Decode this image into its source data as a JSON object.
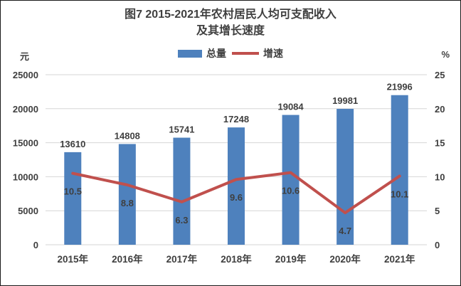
{
  "chart": {
    "title_line1": "图7  2015-2021年农村居民人均可支配收入",
    "title_line2": "及其增长速度",
    "left_axis_unit": "元",
    "right_axis_unit": "%",
    "legend": [
      {
        "label": "总量",
        "type": "bar",
        "color": "#4e81bd"
      },
      {
        "label": "增速",
        "type": "line",
        "color": "#c0504d"
      }
    ]
  },
  "chart_data": {
    "type": "bar+line",
    "title": "图7 2015-2021年农村居民人均可支配收入及其增长速度",
    "categories": [
      "2015年",
      "2016年",
      "2017年",
      "2018年",
      "2019年",
      "2020年",
      "2021年"
    ],
    "series": [
      {
        "name": "总量",
        "type": "bar",
        "axis": "left",
        "unit": "元",
        "color": "#4e81bd",
        "values": [
          13610,
          14808,
          15741,
          17248,
          19084,
          19981,
          21996
        ]
      },
      {
        "name": "增速",
        "type": "line",
        "axis": "right",
        "unit": "%",
        "color": "#c0504d",
        "values": [
          10.5,
          8.8,
          6.3,
          9.6,
          10.6,
          4.7,
          10.1
        ]
      }
    ],
    "left_axis": {
      "label": "元",
      "min": 0,
      "max": 25000,
      "step": 5000,
      "ticks": [
        "0",
        "5000",
        "10000",
        "15000",
        "20000",
        "25000"
      ]
    },
    "right_axis": {
      "label": "%",
      "min": 0,
      "max": 25,
      "step": 5,
      "ticks": [
        "0",
        "5",
        "10",
        "15",
        "20",
        "25"
      ]
    },
    "grid": true,
    "grid_color": "#d6d6d6",
    "legend_position": "top"
  }
}
